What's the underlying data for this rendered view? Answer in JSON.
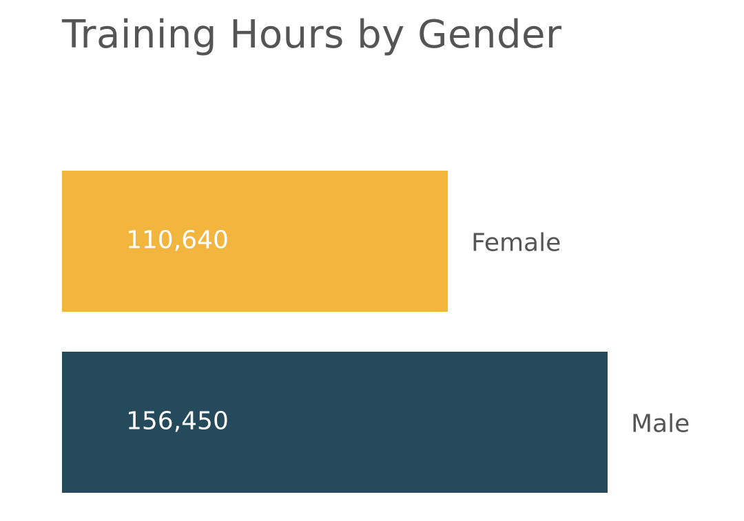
{
  "chart_data": {
    "type": "bar",
    "orientation": "horizontal",
    "title": "Training Hours by Gender",
    "categories": [
      "Female",
      "Male"
    ],
    "values": [
      110640,
      156450
    ],
    "value_labels": [
      "110,640",
      "156,450"
    ],
    "colors": [
      "#F2B63E",
      "#244A5B"
    ],
    "xlim": [
      0,
      156450
    ],
    "grid": false,
    "legend": "none"
  }
}
